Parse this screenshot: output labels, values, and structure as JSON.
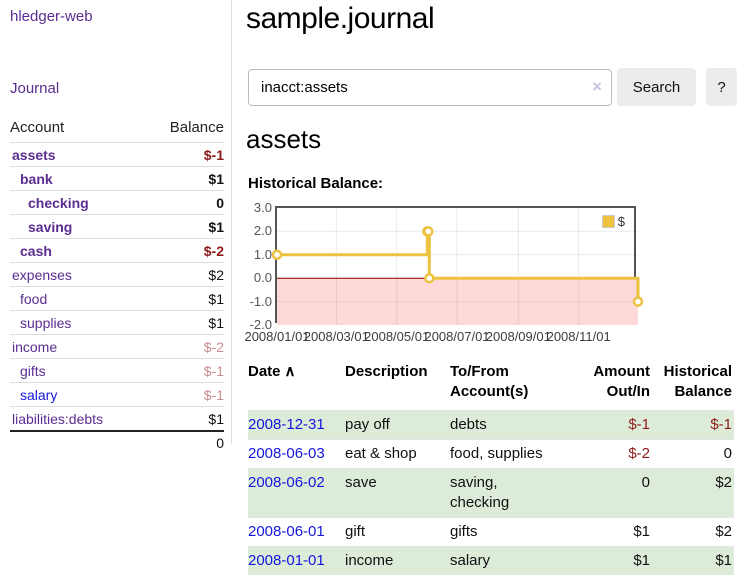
{
  "app": {
    "brand": "hledger-web",
    "nav_journal": "Journal"
  },
  "sidebar": {
    "header": {
      "account": "Account",
      "balance": "Balance"
    },
    "accounts": [
      {
        "name": "assets",
        "balance": "$-1",
        "depth": 1,
        "bold": true,
        "balance_class": "negative"
      },
      {
        "name": "bank",
        "balance": "$1",
        "depth": 2,
        "bold": true,
        "balance_class": ""
      },
      {
        "name": "checking",
        "balance": "0",
        "depth": 3,
        "bold": true,
        "balance_class": ""
      },
      {
        "name": "saving",
        "balance": "$1",
        "depth": 3,
        "bold": true,
        "balance_class": ""
      },
      {
        "name": "cash",
        "balance": "$-2",
        "depth": 2,
        "bold": true,
        "balance_class": "negative"
      },
      {
        "name": "expenses",
        "balance": "$2",
        "depth": 1,
        "bold": false,
        "balance_class": ""
      },
      {
        "name": "food",
        "balance": "$1",
        "depth": 2,
        "bold": false,
        "balance_class": ""
      },
      {
        "name": "supplies",
        "balance": "$1",
        "depth": 2,
        "bold": false,
        "balance_class": ""
      },
      {
        "name": "income",
        "balance": "$-2",
        "depth": 1,
        "bold": false,
        "balance_class": "negative-muted"
      },
      {
        "name": "gifts",
        "balance": "$-1",
        "depth": 2,
        "bold": false,
        "balance_class": "negative-muted"
      },
      {
        "name": "salary",
        "balance": "$-1",
        "depth": 2,
        "bold": false,
        "balance_class": "negative-muted",
        "link_class": "blue"
      },
      {
        "name": "liabilities:debts",
        "balance": "$1",
        "depth": 1,
        "bold": false,
        "balance_class": ""
      }
    ],
    "total": "0"
  },
  "header": {
    "title": "sample.journal"
  },
  "search": {
    "value": "inacct:assets",
    "clear_icon": "×",
    "button": "Search",
    "help_button": "?"
  },
  "account_page": {
    "title": "assets",
    "chart_label": "Historical Balance:"
  },
  "chart_data": {
    "type": "line",
    "title": "Historical Balance:",
    "steps": true,
    "series": [
      {
        "name": "$",
        "points": [
          [
            "2008-01-01",
            1
          ],
          [
            "2008-06-01",
            2
          ],
          [
            "2008-06-02",
            2
          ],
          [
            "2008-06-03",
            0
          ],
          [
            "2008-12-31",
            -1
          ]
        ]
      }
    ],
    "x_ticks": [
      "2008/01/01",
      "2008/03/01",
      "2008/05/01",
      "2008/07/01",
      "2008/09/01",
      "2008/11/01"
    ],
    "y_ticks": [
      "3.0",
      "2.0",
      "1.0",
      "0.0",
      "-1.0",
      "-2.0"
    ],
    "ylim": [
      -2,
      3
    ],
    "xlim": [
      "2008-01-01",
      "2008-12-31"
    ],
    "grid": true,
    "legend": {
      "label": "$",
      "position": "top-right"
    }
  },
  "register": {
    "columns": [
      "Date",
      "Description",
      "To/From Account(s)",
      "Amount Out/In",
      "Historical Balance"
    ],
    "sort_icon": "∧",
    "rows": [
      {
        "date": "2008-12-31",
        "description": "pay off",
        "accounts": "debts",
        "amount": "$-1",
        "balance": "$-1",
        "amount_class": "negative",
        "balance_class": "negative",
        "shaded": true
      },
      {
        "date": "2008-06-03",
        "description": "eat & shop",
        "accounts": "food, supplies",
        "amount": "$-2",
        "balance": "0",
        "amount_class": "negative",
        "balance_class": "",
        "shaded": false
      },
      {
        "date": "2008-06-02",
        "description": "save",
        "accounts": "saving, checking",
        "amount": "0",
        "balance": "$2",
        "amount_class": "",
        "balance_class": "",
        "shaded": true
      },
      {
        "date": "2008-06-01",
        "description": "gift",
        "accounts": "gifts",
        "amount": "$1",
        "balance": "$2",
        "amount_class": "",
        "balance_class": "",
        "shaded": false
      },
      {
        "date": "2008-01-01",
        "description": "income",
        "accounts": "salary",
        "amount": "$1",
        "balance": "$1",
        "amount_class": "",
        "balance_class": "",
        "shaded": true
      }
    ]
  },
  "colors": {
    "accent_purple": "#5B2D90",
    "link_blue": "#1515DD",
    "negative": "#8E1A1A",
    "negative_muted": "#C98F8F",
    "row_green": "#DDECD9",
    "chart_line": "#EDC240",
    "chart_negative_fill": "#FFD9D9",
    "chart_zero_line": "#8B0000"
  }
}
